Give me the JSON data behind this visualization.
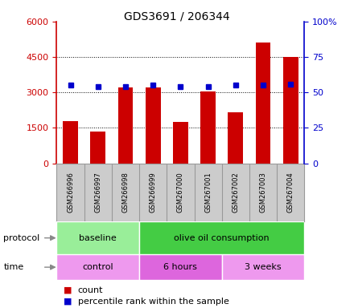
{
  "title": "GDS3691 / 206344",
  "samples": [
    "GSM266996",
    "GSM266997",
    "GSM266998",
    "GSM266999",
    "GSM267000",
    "GSM267001",
    "GSM267002",
    "GSM267003",
    "GSM267004"
  ],
  "counts": [
    1800,
    1350,
    3200,
    3200,
    1750,
    3050,
    2150,
    5100,
    4500
  ],
  "percentile_ranks": [
    55,
    54,
    54,
    55,
    54,
    54,
    55,
    55,
    56
  ],
  "ylim_left": [
    0,
    6000
  ],
  "ylim_right": [
    0,
    100
  ],
  "yticks_left": [
    0,
    1500,
    3000,
    4500,
    6000
  ],
  "ytick_labels_left": [
    "0",
    "1500",
    "3000",
    "4500",
    "6000"
  ],
  "yticks_right": [
    0,
    25,
    50,
    75,
    100
  ],
  "ytick_labels_right": [
    "0",
    "25",
    "50",
    "75",
    "100%"
  ],
  "bar_color": "#cc0000",
  "dot_color": "#0000cc",
  "protocol_groups": [
    {
      "label": "baseline",
      "start": 0,
      "end": 3,
      "color": "#99ee99"
    },
    {
      "label": "olive oil consumption",
      "start": 3,
      "end": 9,
      "color": "#44cc44"
    }
  ],
  "time_groups": [
    {
      "label": "control",
      "start": 0,
      "end": 3,
      "color": "#ee99ee"
    },
    {
      "label": "6 hours",
      "start": 3,
      "end": 6,
      "color": "#dd66dd"
    },
    {
      "label": "3 weeks",
      "start": 6,
      "end": 9,
      "color": "#ee99ee"
    }
  ],
  "legend_count_label": "count",
  "legend_pct_label": "percentile rank within the sample",
  "protocol_label": "protocol",
  "time_label": "time",
  "background_color": "#ffffff",
  "plot_bg_color": "#ffffff",
  "grid_color": "#000000",
  "left_axis_color": "#cc0000",
  "right_axis_color": "#0000cc",
  "label_bg_color": "#cccccc",
  "label_border_color": "#999999"
}
